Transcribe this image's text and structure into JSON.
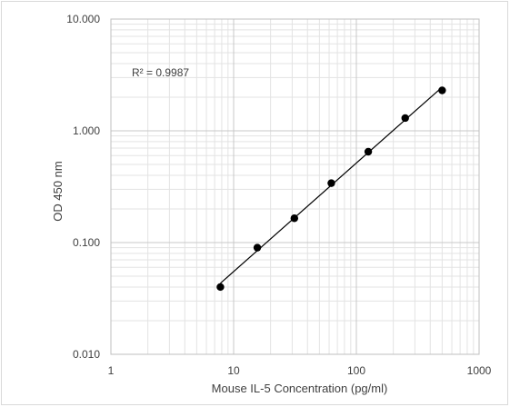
{
  "chart_data": {
    "type": "scatter",
    "title": "",
    "xlabel": "Mouse IL-5 Concentration (pg/ml)",
    "ylabel": "OD 450 nm",
    "x_scale": "log",
    "y_scale": "log",
    "xlim": [
      1,
      1000
    ],
    "ylim": [
      0.01,
      10
    ],
    "x_tick_labels": [
      "1",
      "10",
      "100",
      "1000"
    ],
    "y_tick_labels": [
      "0.010",
      "0.100",
      "1.000",
      "10.000"
    ],
    "grid": true,
    "legend": "none",
    "series": [
      {
        "x": [
          7.8,
          15.6,
          31.25,
          62.5,
          125,
          250,
          500
        ],
        "y": [
          0.04,
          0.09,
          0.165,
          0.34,
          0.65,
          1.3,
          2.3
        ],
        "marker": "circle",
        "color": "#000000"
      }
    ],
    "trendline": {
      "type": "power",
      "r_squared_label": "R² = 0.9987",
      "color": "#000000"
    }
  }
}
